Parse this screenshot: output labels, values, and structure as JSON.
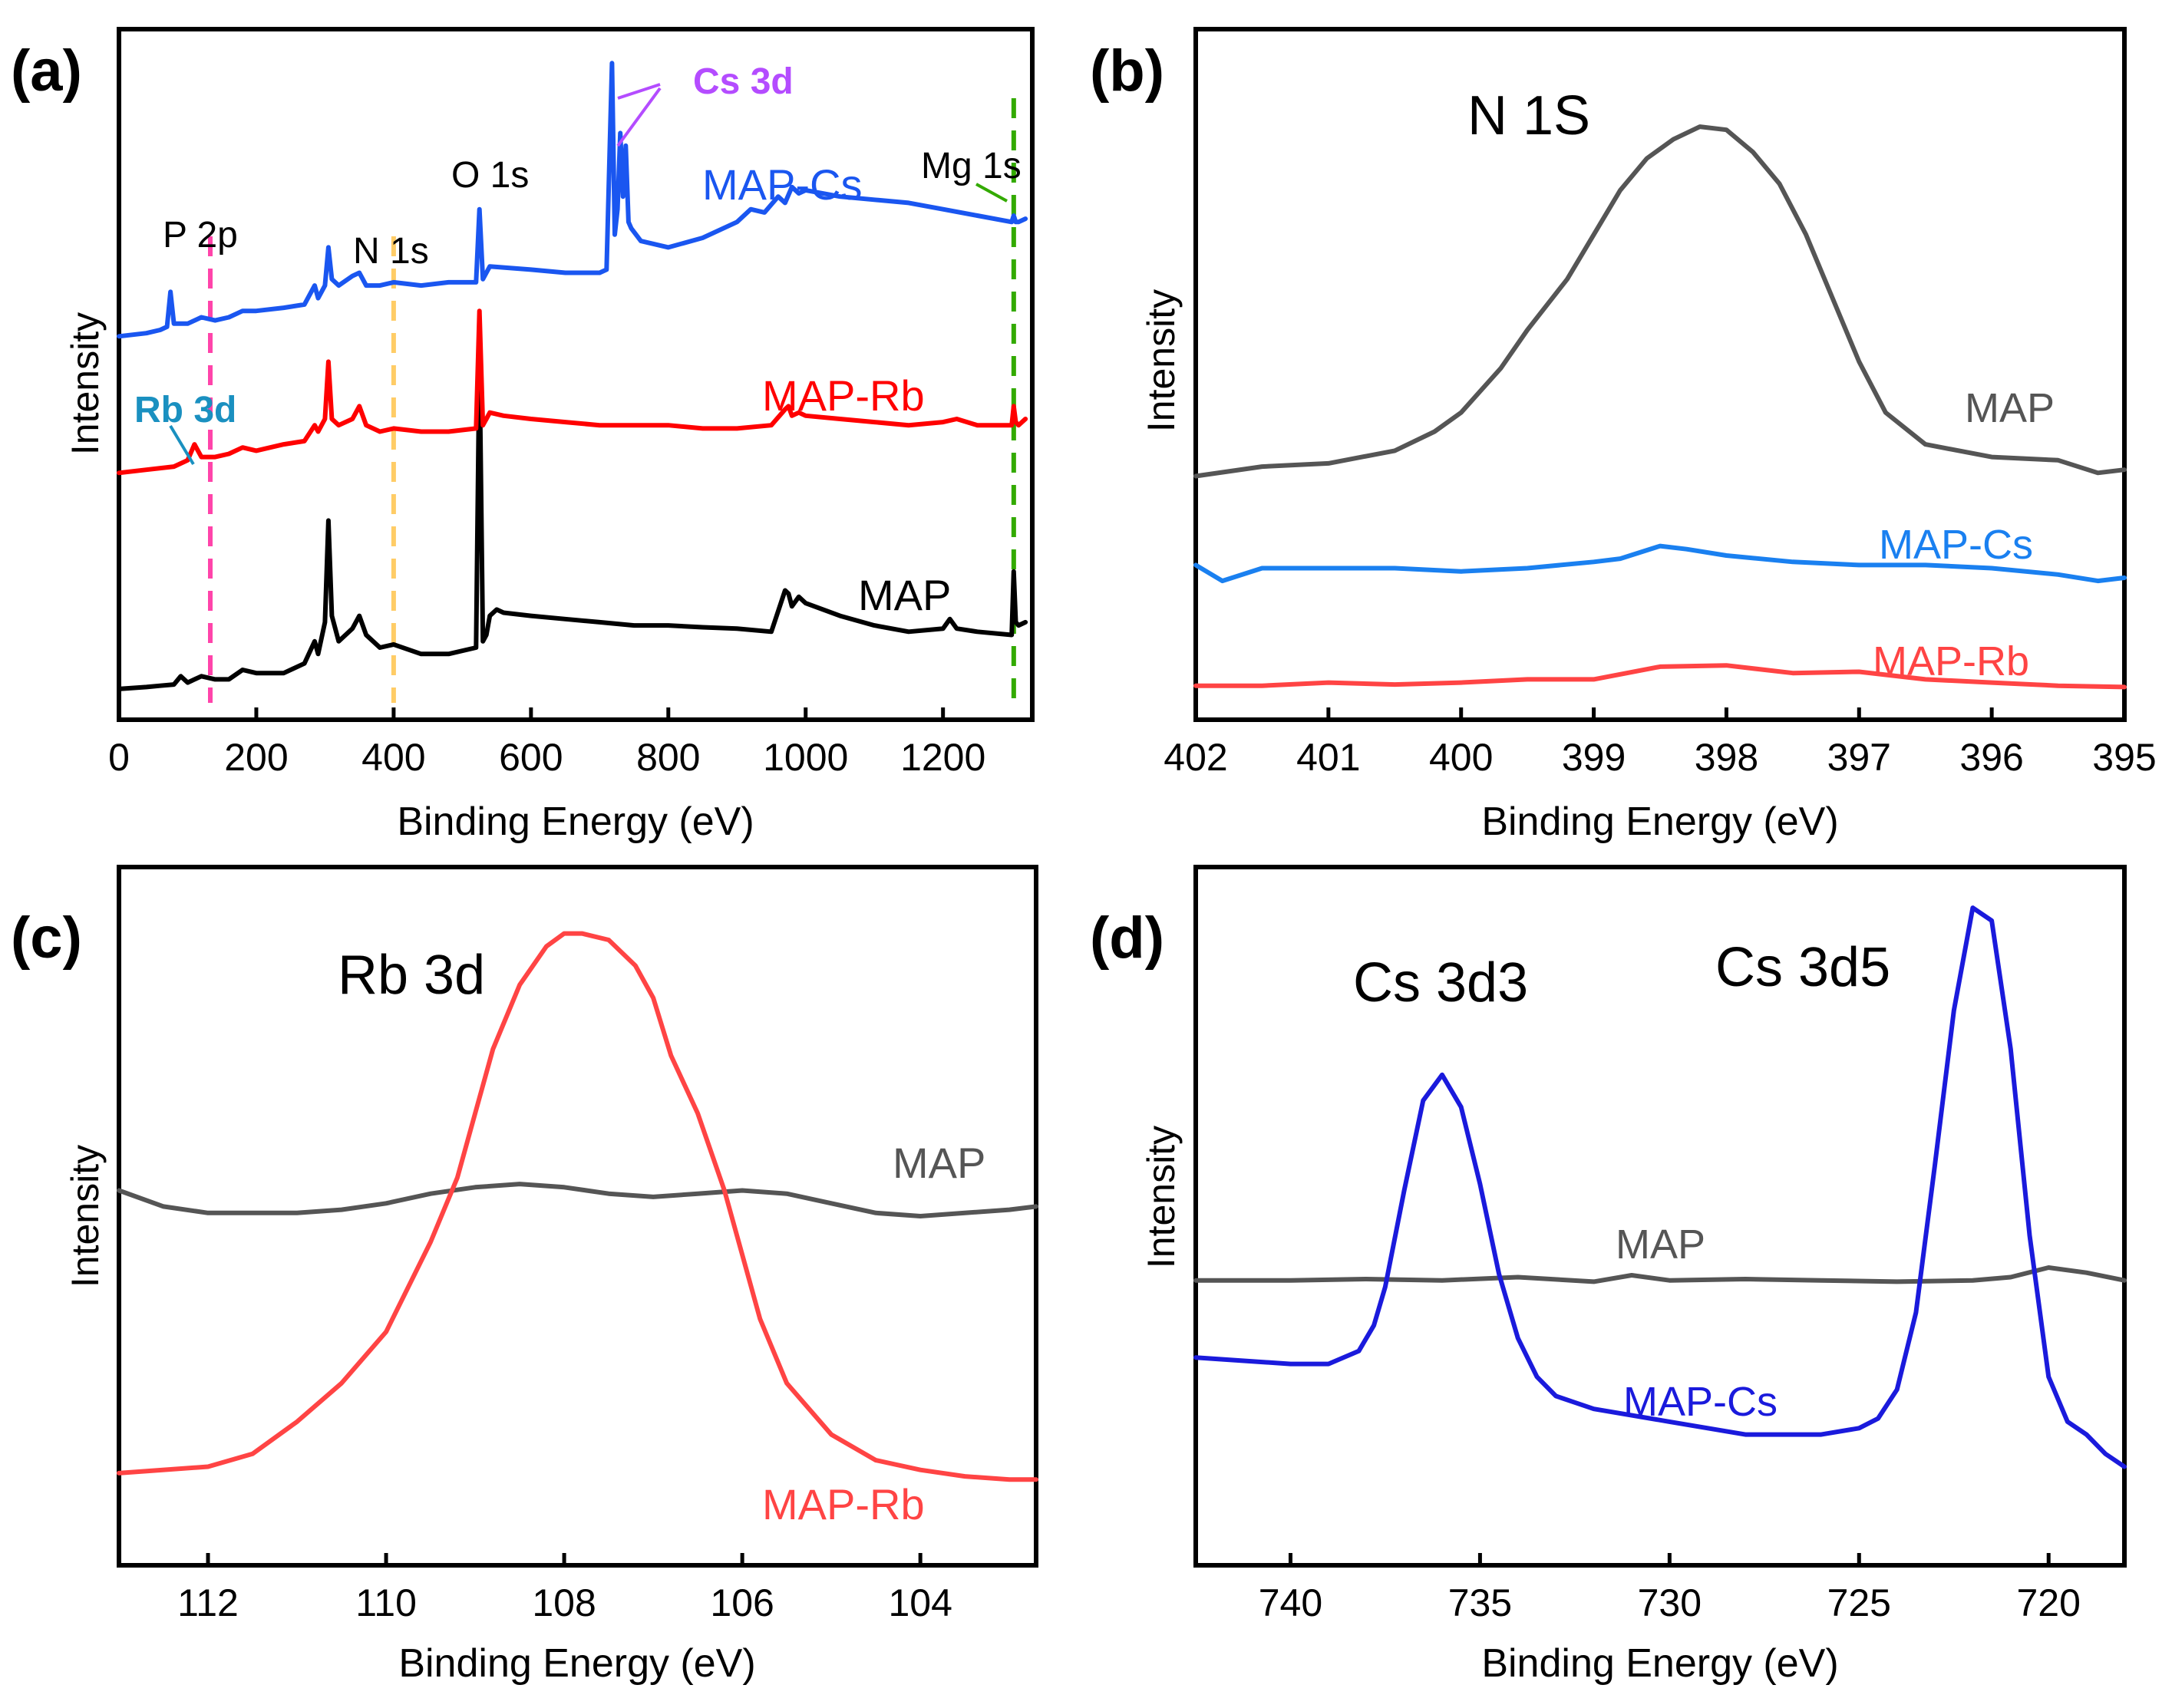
{
  "chart_data": [
    {
      "type": "line",
      "panel": "(a)",
      "xlabel": "Binding Energy (eV)",
      "ylabel": "Intensity",
      "xlim": [
        0,
        1330
      ],
      "ylim": [
        0,
        10
      ],
      "xticks": [
        0,
        200,
        400,
        600,
        800,
        1000,
        1200
      ],
      "series": [
        {
          "name": "MAP",
          "label": "MAP",
          "color": "#000000",
          "x": [
            0,
            40,
            60,
            80,
            90,
            100,
            120,
            140,
            160,
            180,
            200,
            240,
            270,
            285,
            290,
            300,
            305,
            310,
            320,
            340,
            350,
            360,
            380,
            400,
            440,
            480,
            520,
            525,
            530,
            535,
            540,
            550,
            560,
            600,
            650,
            700,
            750,
            800,
            850,
            900,
            950,
            970,
            975,
            980,
            990,
            1000,
            1050,
            1100,
            1150,
            1200,
            1210,
            1220,
            1250,
            1300,
            1303,
            1306,
            1310,
            1320
          ],
          "y": [
            0.05,
            0.08,
            0.1,
            0.12,
            0.25,
            0.15,
            0.25,
            0.2,
            0.2,
            0.35,
            0.3,
            0.3,
            0.45,
            0.8,
            0.6,
            1.1,
            2.7,
            1.2,
            0.8,
            1.0,
            1.2,
            0.9,
            0.7,
            0.75,
            0.6,
            0.6,
            0.7,
            5.3,
            0.8,
            0.9,
            1.2,
            1.3,
            1.25,
            1.2,
            1.15,
            1.1,
            1.05,
            1.05,
            1.02,
            1.0,
            0.95,
            1.6,
            1.55,
            1.35,
            1.5,
            1.4,
            1.2,
            1.05,
            0.95,
            1.0,
            1.15,
            1.0,
            0.95,
            0.9,
            1.9,
            1.1,
            1.05,
            1.1
          ]
        },
        {
          "name": "MAP-Rb",
          "label": "MAP-Rb",
          "color": "#ff0000",
          "x": [
            0,
            40,
            80,
            100,
            110,
            120,
            140,
            160,
            180,
            200,
            240,
            270,
            285,
            290,
            300,
            305,
            310,
            320,
            340,
            350,
            360,
            380,
            400,
            440,
            480,
            520,
            525,
            530,
            535,
            540,
            560,
            600,
            650,
            700,
            750,
            800,
            850,
            900,
            950,
            970,
            975,
            980,
            990,
            1000,
            1050,
            1100,
            1150,
            1200,
            1220,
            1250,
            1300,
            1303,
            1306,
            1310,
            1320
          ],
          "y": [
            3.45,
            3.5,
            3.55,
            3.65,
            3.9,
            3.7,
            3.7,
            3.75,
            3.85,
            3.8,
            3.9,
            3.95,
            4.2,
            4.1,
            4.3,
            5.2,
            4.3,
            4.2,
            4.3,
            4.5,
            4.2,
            4.1,
            4.15,
            4.1,
            4.1,
            4.15,
            6.0,
            4.2,
            4.3,
            4.4,
            4.35,
            4.3,
            4.25,
            4.2,
            4.2,
            4.2,
            4.15,
            4.15,
            4.2,
            4.45,
            4.5,
            4.35,
            4.4,
            4.35,
            4.3,
            4.25,
            4.2,
            4.25,
            4.3,
            4.2,
            4.2,
            4.5,
            4.25,
            4.2,
            4.3
          ]
        },
        {
          "name": "MAP-Cs",
          "label": "MAP-Cs",
          "color": "#1a56f0",
          "x": [
            0,
            40,
            60,
            70,
            75,
            80,
            100,
            120,
            140,
            160,
            180,
            200,
            240,
            270,
            285,
            290,
            300,
            305,
            310,
            320,
            340,
            350,
            360,
            380,
            400,
            440,
            480,
            520,
            525,
            530,
            535,
            540,
            600,
            650,
            700,
            710,
            718,
            722,
            726,
            730,
            734,
            738,
            742,
            746,
            760,
            800,
            850,
            900,
            920,
            940,
            960,
            970,
            980,
            990,
            1000,
            1050,
            1100,
            1150,
            1200,
            1250,
            1300,
            1303,
            1306,
            1310,
            1320
          ],
          "y": [
            5.6,
            5.65,
            5.7,
            5.75,
            6.3,
            5.8,
            5.8,
            5.9,
            5.85,
            5.9,
            6.0,
            6.0,
            6.05,
            6.1,
            6.4,
            6.2,
            6.4,
            7.0,
            6.5,
            6.4,
            6.55,
            6.6,
            6.4,
            6.4,
            6.45,
            6.4,
            6.45,
            6.45,
            7.6,
            6.5,
            6.6,
            6.7,
            6.65,
            6.6,
            6.6,
            6.65,
            9.9,
            7.2,
            7.6,
            8.8,
            7.8,
            8.6,
            7.4,
            7.3,
            7.1,
            7.0,
            7.15,
            7.4,
            7.6,
            7.55,
            7.8,
            7.7,
            7.95,
            7.85,
            7.9,
            7.8,
            7.75,
            7.7,
            7.6,
            7.5,
            7.4,
            7.5,
            7.4,
            7.4,
            7.45
          ]
        }
      ],
      "markers": [
        {
          "label": "P 2p",
          "x": 133,
          "color": "#ff44aa"
        },
        {
          "label": "N 1s",
          "x": 400,
          "color": "#ffcc66"
        },
        {
          "label": "Mg 1s",
          "x": 1303,
          "color": "#33aa00"
        }
      ],
      "annotations": [
        {
          "text": "Cs 3d",
          "color": "#b44cff"
        },
        {
          "text": "O 1s",
          "color": "#000000"
        },
        {
          "text": "Rb 3d",
          "color": "#1a90c0"
        },
        {
          "text": "P 2p",
          "color": "#000000"
        },
        {
          "text": "N 1s",
          "color": "#000000"
        },
        {
          "text": "Mg 1s",
          "color": "#000000"
        }
      ]
    },
    {
      "type": "line",
      "panel": "(b)",
      "title": "N 1S",
      "xlabel": "Binding Energy (eV)",
      "ylabel": "Intensity",
      "xlim": [
        402,
        395
      ],
      "ylim": [
        0,
        10
      ],
      "xticks": [
        402,
        401,
        400,
        399,
        398,
        397,
        396,
        395
      ],
      "series": [
        {
          "name": "MAP",
          "label": "MAP",
          "color": "#555555",
          "x": [
            402,
            401.5,
            401,
            400.5,
            400.2,
            400,
            399.7,
            399.5,
            399.2,
            399,
            398.8,
            398.6,
            398.4,
            398.2,
            398,
            397.8,
            397.6,
            397.4,
            397.2,
            397,
            396.8,
            396.5,
            396,
            395.5,
            395.2,
            395
          ],
          "y": [
            3.4,
            3.55,
            3.6,
            3.8,
            4.1,
            4.4,
            5.1,
            5.7,
            6.5,
            7.2,
            7.9,
            8.4,
            8.7,
            8.9,
            8.85,
            8.5,
            8.0,
            7.2,
            6.2,
            5.2,
            4.4,
            3.9,
            3.7,
            3.65,
            3.45,
            3.5
          ]
        },
        {
          "name": "MAP-Cs",
          "label": "MAP-Cs",
          "color": "#1a80f0",
          "x": [
            402,
            401.8,
            401.5,
            401,
            400.5,
            400,
            399.5,
            399,
            398.8,
            398.5,
            398.3,
            398,
            397.5,
            397,
            396.5,
            396,
            395.5,
            395.2,
            395
          ],
          "y": [
            2.0,
            1.75,
            1.95,
            1.95,
            1.95,
            1.9,
            1.95,
            2.05,
            2.1,
            2.3,
            2.25,
            2.15,
            2.05,
            2.0,
            2.0,
            1.95,
            1.85,
            1.75,
            1.8
          ]
        },
        {
          "name": "MAP-Rb",
          "label": "MAP-Rb",
          "color": "#ff4444",
          "x": [
            402,
            401.5,
            401,
            400.5,
            400,
            399.5,
            399,
            398.5,
            398,
            397.5,
            397,
            396.5,
            396,
            395.5,
            395
          ],
          "y": [
            0.1,
            0.1,
            0.15,
            0.12,
            0.15,
            0.2,
            0.2,
            0.4,
            0.42,
            0.3,
            0.32,
            0.2,
            0.15,
            0.1,
            0.08
          ]
        }
      ]
    },
    {
      "type": "line",
      "panel": "(c)",
      "title": "Rb 3d",
      "xlabel": "Binding Energy (eV)",
      "ylabel": "Intensity",
      "xlim": [
        113,
        102.7
      ],
      "ylim": [
        0,
        10
      ],
      "xticks": [
        112,
        110,
        108,
        106,
        104
      ],
      "series": [
        {
          "name": "MAP",
          "label": "MAP",
          "color": "#555555",
          "x": [
            113,
            112.5,
            112,
            111.5,
            111,
            110.5,
            110,
            109.5,
            109,
            108.5,
            108,
            107.5,
            107,
            106.5,
            106,
            105.5,
            105,
            104.5,
            104,
            103.5,
            103,
            102.7
          ],
          "y": [
            5.4,
            5.15,
            5.05,
            5.05,
            5.05,
            5.1,
            5.2,
            5.35,
            5.45,
            5.5,
            5.45,
            5.35,
            5.3,
            5.35,
            5.4,
            5.35,
            5.2,
            5.05,
            5.0,
            5.05,
            5.1,
            5.15
          ]
        },
        {
          "name": "MAP-Rb",
          "label": "MAP-Rb",
          "color": "#ff4444",
          "x": [
            113,
            112,
            111.5,
            111,
            110.5,
            110,
            109.5,
            109.2,
            109,
            108.8,
            108.5,
            108.2,
            108,
            107.8,
            107.5,
            107.2,
            107,
            106.8,
            106.5,
            106.2,
            106,
            105.8,
            105.5,
            105,
            104.5,
            104,
            103.5,
            103,
            102.7
          ],
          "y": [
            1.0,
            1.1,
            1.3,
            1.8,
            2.4,
            3.2,
            4.6,
            5.6,
            6.6,
            7.6,
            8.6,
            9.2,
            9.4,
            9.4,
            9.3,
            8.9,
            8.4,
            7.5,
            6.6,
            5.4,
            4.4,
            3.4,
            2.4,
            1.6,
            1.2,
            1.05,
            0.95,
            0.9,
            0.9
          ]
        }
      ]
    },
    {
      "type": "line",
      "panel": "(d)",
      "xlabel": "Binding Energy (eV)",
      "ylabel": "Intensity",
      "xlim": [
        742.5,
        718
      ],
      "ylim": [
        0,
        10
      ],
      "xticks": [
        740,
        735,
        730,
        725,
        720
      ],
      "series": [
        {
          "name": "MAP",
          "label": "MAP",
          "color": "#555555",
          "x": [
            742.5,
            740,
            738,
            736,
            734,
            732,
            731,
            730,
            728,
            726,
            724,
            722,
            721,
            720,
            719,
            718
          ],
          "y": [
            4.0,
            4.0,
            4.02,
            4.0,
            4.05,
            3.98,
            4.08,
            4.0,
            4.02,
            4.0,
            3.98,
            4.0,
            4.05,
            4.2,
            4.12,
            4.0
          ]
        },
        {
          "name": "MAP-Cs",
          "label": "MAP-Cs",
          "color": "#1a1adc",
          "x": [
            742.5,
            740,
            739,
            738.2,
            737.8,
            737.5,
            737,
            736.5,
            736,
            735.5,
            735,
            734.5,
            734,
            733.5,
            733,
            732.5,
            732,
            730,
            728,
            726,
            725,
            724.5,
            724,
            723.5,
            723,
            722.5,
            722,
            721.5,
            721,
            720.5,
            720,
            719.5,
            719,
            718.5,
            718
          ],
          "y": [
            2.8,
            2.7,
            2.7,
            2.9,
            3.3,
            3.9,
            5.4,
            6.8,
            7.2,
            6.7,
            5.5,
            4.1,
            3.1,
            2.5,
            2.2,
            2.1,
            2.0,
            1.8,
            1.6,
            1.6,
            1.7,
            1.85,
            2.3,
            3.5,
            5.8,
            8.2,
            9.8,
            9.6,
            7.6,
            4.7,
            2.5,
            1.8,
            1.6,
            1.3,
            1.1
          ]
        }
      ],
      "annotations": [
        {
          "text": "Cs 3d3",
          "color": "#000000"
        },
        {
          "text": "Cs 3d5",
          "color": "#000000"
        }
      ]
    }
  ]
}
